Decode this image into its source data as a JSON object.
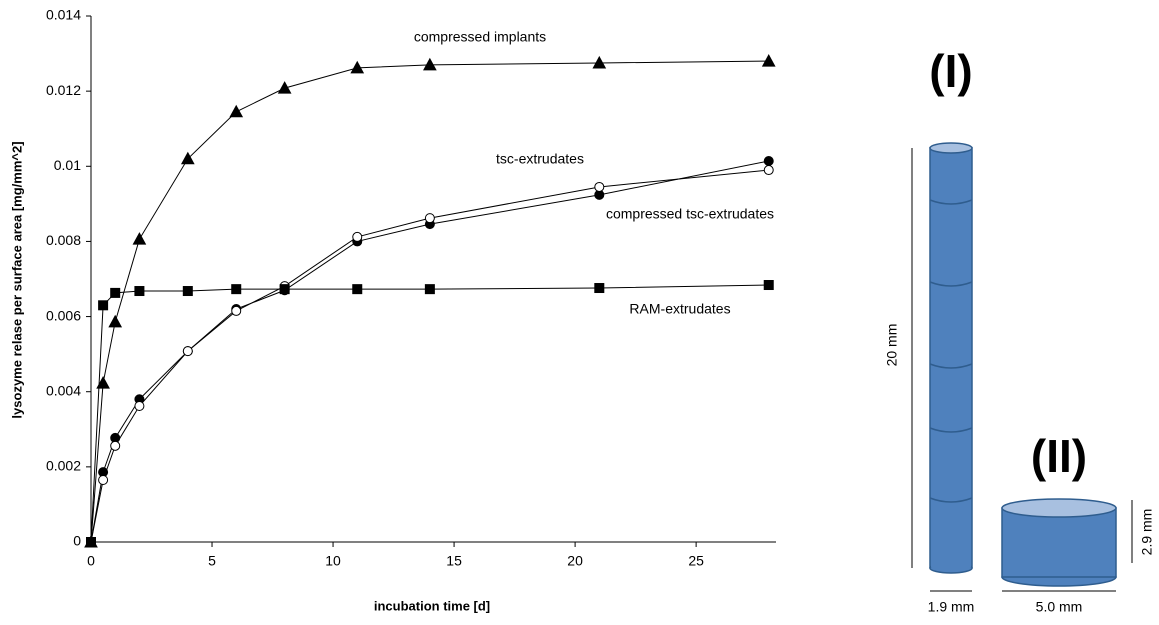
{
  "chart_data": {
    "type": "line",
    "x_label": "incubation time [d]",
    "y_label": "lysozyme relase per surface area [mg/mm^2]",
    "x": [
      0,
      0.5,
      1,
      2,
      4,
      6,
      8,
      11,
      14,
      21,
      28
    ],
    "series": [
      {
        "name": "compressed implants",
        "color": "#000000",
        "marker": "triangle",
        "values": [
          0,
          0.00423,
          0.00586,
          0.00806,
          0.0102,
          0.01145,
          0.01208,
          0.01262,
          0.0127,
          0.01275,
          0.0128
        ]
      },
      {
        "name": "tsc-extrudates",
        "color": "#000000",
        "marker": "circle",
        "values": [
          0,
          0.00186,
          0.00277,
          0.0038,
          0.00508,
          0.0062,
          0.0067,
          0.008,
          0.00846,
          0.00924,
          0.01014
        ]
      },
      {
        "name": "compressed tsc-extrudates",
        "color": "#000000",
        "marker": "open-circle",
        "values": [
          0,
          0.00165,
          0.00256,
          0.00362,
          0.00508,
          0.00615,
          0.00681,
          0.00812,
          0.00862,
          0.00945,
          0.0099
        ]
      },
      {
        "name": "RAM-extrudates",
        "color": "#000000",
        "marker": "square",
        "values": [
          0,
          0.0063,
          0.00663,
          0.00668,
          0.00668,
          0.00673,
          0.00673,
          0.00673,
          0.00673,
          0.00676,
          0.00684
        ]
      }
    ],
    "xlim": [
      0,
      28.3
    ],
    "xticks": [
      0,
      5,
      10,
      15,
      20,
      25
    ],
    "ylim": [
      0,
      0.014
    ],
    "yticks": [
      0,
      0.002,
      0.004,
      0.006,
      0.008,
      0.01,
      0.012,
      0.014
    ],
    "grid": false
  },
  "diagram": {
    "label_1": "(I)",
    "label_2": "(II)",
    "length_1": "20 mm",
    "diameter_1": "1.9 mm",
    "diameter_2": "5.0 mm",
    "height_2": "2.9 mm"
  }
}
